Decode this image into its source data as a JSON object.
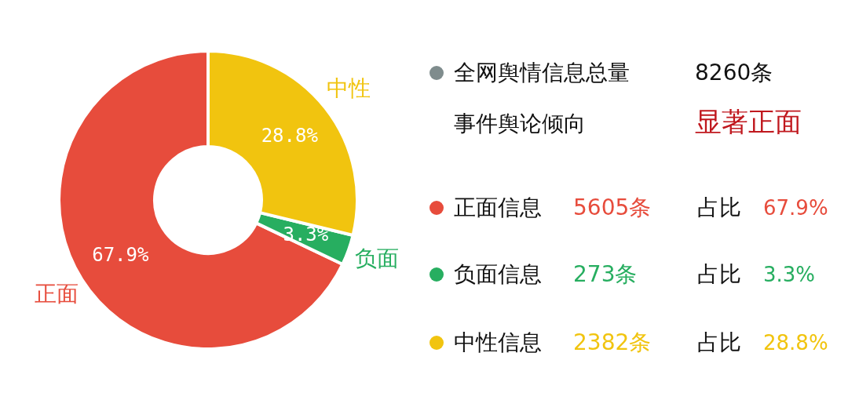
{
  "chart_data": {
    "type": "donut",
    "categories": [
      "正面",
      "负面",
      "中性"
    ],
    "values": [
      67.9,
      3.3,
      28.8
    ],
    "colors": [
      "#e74c3c",
      "#27ae60",
      "#f1c40f"
    ],
    "value_labels": [
      "67.9%",
      "3.3%",
      "28.8%"
    ],
    "annotations": [
      "全网舆情信息总量",
      "8260条",
      "事件舆论倾向",
      "显著正面",
      "正面信息",
      "5605条",
      "占比",
      "67.9%",
      "负面信息",
      "273条",
      "占比",
      "3.3%",
      "中性信息",
      "2382条",
      "占比",
      "28.8%"
    ]
  }
}
